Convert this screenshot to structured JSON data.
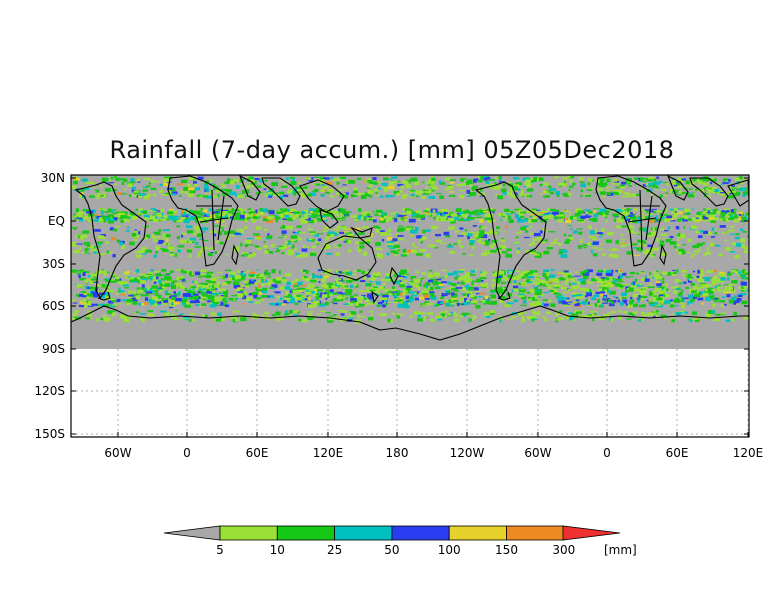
{
  "title": "Rainfall (7-day accum.) [mm] 05Z05Dec2018",
  "y_ticks": [
    "30N",
    "EQ",
    "30S",
    "60S",
    "90S",
    "120S",
    "150S"
  ],
  "x_ticks": [
    "60W",
    "0",
    "60E",
    "120E",
    "180",
    "120W",
    "60W",
    "0",
    "60E",
    "120E"
  ],
  "colorbar": {
    "unit": "[mm]",
    "labels": [
      "5",
      "10",
      "25",
      "50",
      "100",
      "150",
      "300"
    ],
    "colors": [
      "#a8a8a8",
      "#9be036",
      "#16c816",
      "#00c0c0",
      "#2a3cf0",
      "#e6d22a",
      "#ee8a22",
      "#ee3030"
    ]
  },
  "map_colors": {
    "no_rain": "#a8a8a8",
    "coast": "#000000"
  }
}
